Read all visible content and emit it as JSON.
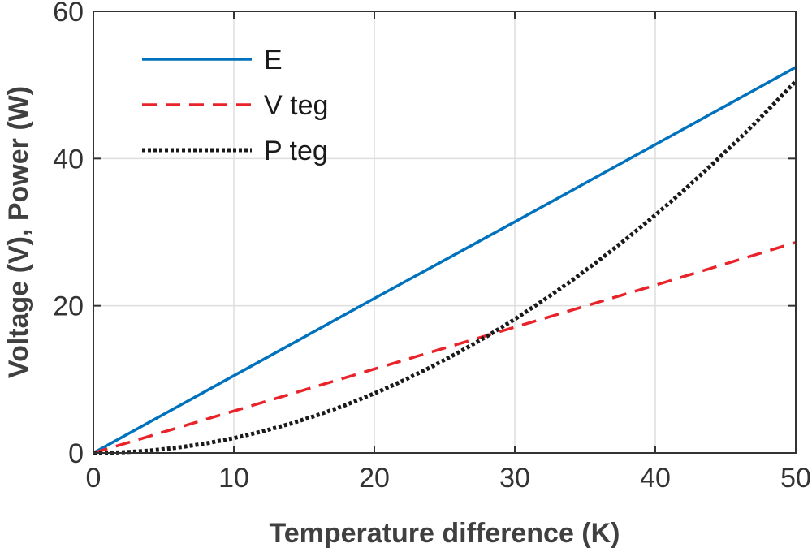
{
  "chart_data": {
    "type": "line",
    "xlabel": "Temperature difference (K)",
    "ylabel": "Voltage (V), Power (W)",
    "xlim": [
      0,
      50
    ],
    "ylim": [
      0,
      60
    ],
    "xticks": [
      0,
      10,
      20,
      30,
      40,
      50
    ],
    "yticks": [
      0,
      20,
      40,
      60
    ],
    "grid": true,
    "legend_position": "top-left",
    "series": [
      {
        "name": "E",
        "color": "#0072BD",
        "style": "solid",
        "x": [
          0,
          10,
          20,
          30,
          40,
          50
        ],
        "y": [
          0,
          10.5,
          21,
          31.4,
          41.9,
          52.4
        ]
      },
      {
        "name": "V teg",
        "color": "#E8232A",
        "style": "dashed",
        "x": [
          0,
          10,
          20,
          30,
          40,
          50
        ],
        "y": [
          0,
          5.7,
          11.4,
          17.1,
          22.8,
          28.6
        ]
      },
      {
        "name": "P teg",
        "color": "#1a1a1a",
        "style": "dotted",
        "x": [
          0,
          2,
          4,
          6,
          8,
          10,
          12,
          14,
          16,
          18,
          20,
          22,
          24,
          26,
          28,
          30,
          32,
          34,
          36,
          38,
          40,
          42,
          44,
          46,
          48,
          50
        ],
        "y": [
          0,
          0.08,
          0.32,
          0.73,
          1.29,
          2.02,
          2.91,
          3.96,
          5.17,
          6.54,
          8.08,
          9.78,
          11.64,
          13.66,
          15.84,
          18.18,
          20.69,
          23.35,
          26.18,
          29.17,
          32.32,
          35.63,
          39.11,
          42.74,
          46.54,
          50.5
        ]
      }
    ]
  }
}
